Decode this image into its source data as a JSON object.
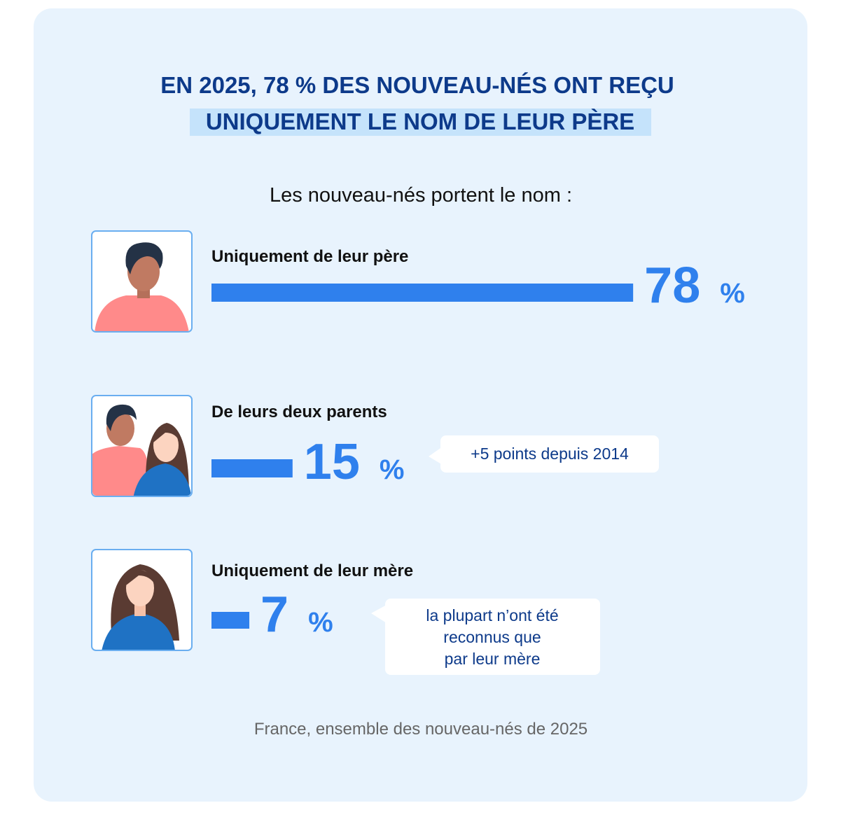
{
  "chart_data": {
    "type": "bar",
    "title": [
      "EN 2025, 78 % DES NOUVEAU-NÉS ONT REÇU",
      "UNIQUEMENT LE NOM DE LEUR PÈRE"
    ],
    "subtitle": "Les nouveau-nés portent le nom :",
    "categories": [
      "Uniquement de leur père",
      "De leurs deux parents",
      "Uniquement de leur mère"
    ],
    "values": [
      78,
      15,
      7
    ],
    "value_labels": [
      "78 %",
      "15 %",
      "7 %"
    ],
    "color": "#2f80ed",
    "annotations": [
      [
        "+5 points depuis 2014"
      ],
      [
        "la plupart n’ont été",
        "reconnus que",
        "par leur mère"
      ]
    ],
    "footnote": "France, ensemble des nouveau-nés de 2025"
  }
}
